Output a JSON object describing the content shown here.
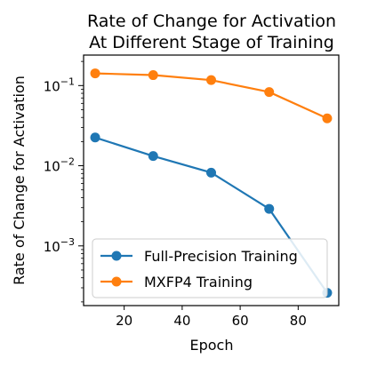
{
  "chart_data": {
    "type": "line",
    "title_lines": [
      "Rate of Change for Activation",
      "At Different Stage of Training"
    ],
    "xlabel": "Epoch",
    "ylabel": "Rate of Change for Activation",
    "yscale": "log",
    "xlim": [
      6,
      94
    ],
    "ylim": [
      0.00018,
      0.24
    ],
    "x_ticks": [
      20,
      40,
      60,
      80
    ],
    "x_tick_labels": [
      "20",
      "40",
      "60",
      "80"
    ],
    "y_ticks": [
      {
        "value": 0.1,
        "base": "10",
        "exp": "−1"
      },
      {
        "value": 0.01,
        "base": "10",
        "exp": "−2"
      },
      {
        "value": 0.001,
        "base": "10",
        "exp": "−3"
      }
    ],
    "grid": false,
    "legend_position": "lower-left",
    "series": [
      {
        "name": "Full-Precision Training",
        "color": "#1f77b4",
        "x": [
          10,
          30,
          50,
          70,
          90
        ],
        "values": [
          0.0225,
          0.0132,
          0.0082,
          0.0029,
          0.00026
        ]
      },
      {
        "name": "MXFP4 Training",
        "color": "#ff7f0e",
        "x": [
          10,
          30,
          50,
          70,
          90
        ],
        "values": [
          0.142,
          0.135,
          0.117,
          0.083,
          0.039
        ]
      }
    ]
  }
}
